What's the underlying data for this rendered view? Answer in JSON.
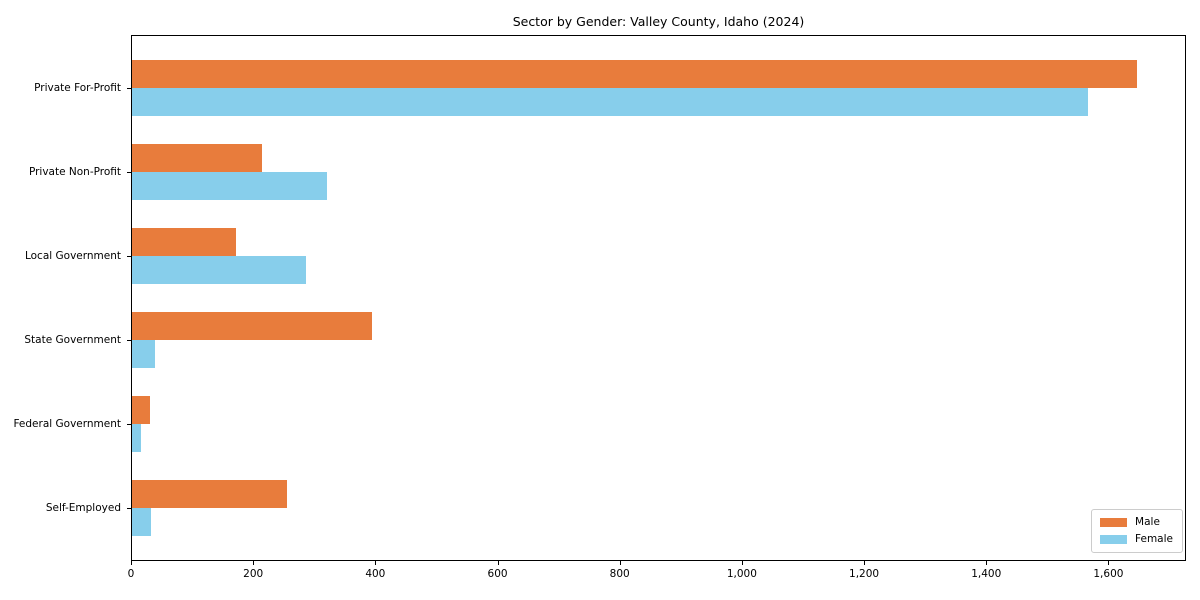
{
  "chart_data": {
    "type": "bar",
    "orientation": "horizontal",
    "title": "Sector by Gender: Valley County, Idaho (2024)",
    "xlabel": "",
    "ylabel": "",
    "categories": [
      "Private For-Profit",
      "Private Non-Profit",
      "Local Government",
      "State Government",
      "Federal Government",
      "Self-Employed"
    ],
    "series": [
      {
        "name": "Male",
        "color": "#E87C3C",
        "values": [
          1645,
          212,
          170,
          393,
          29,
          253
        ]
      },
      {
        "name": "Female",
        "color": "#87CEEB",
        "values": [
          1565,
          320,
          285,
          38,
          14,
          31
        ]
      }
    ],
    "xlim": [
      0,
      1727
    ],
    "x_tick_values": [
      0,
      200,
      400,
      600,
      800,
      1000,
      1200,
      1400,
      1600
    ],
    "x_tick_labels": [
      "0",
      "200",
      "400",
      "600",
      "800",
      "1,000",
      "1,200",
      "1,400",
      "1,600"
    ],
    "grid": false,
    "legend_position": "lower right"
  },
  "colors": {
    "background": "#ffffff",
    "axis": "#000000",
    "legend_border": "#cccccc",
    "text": "#000000"
  }
}
